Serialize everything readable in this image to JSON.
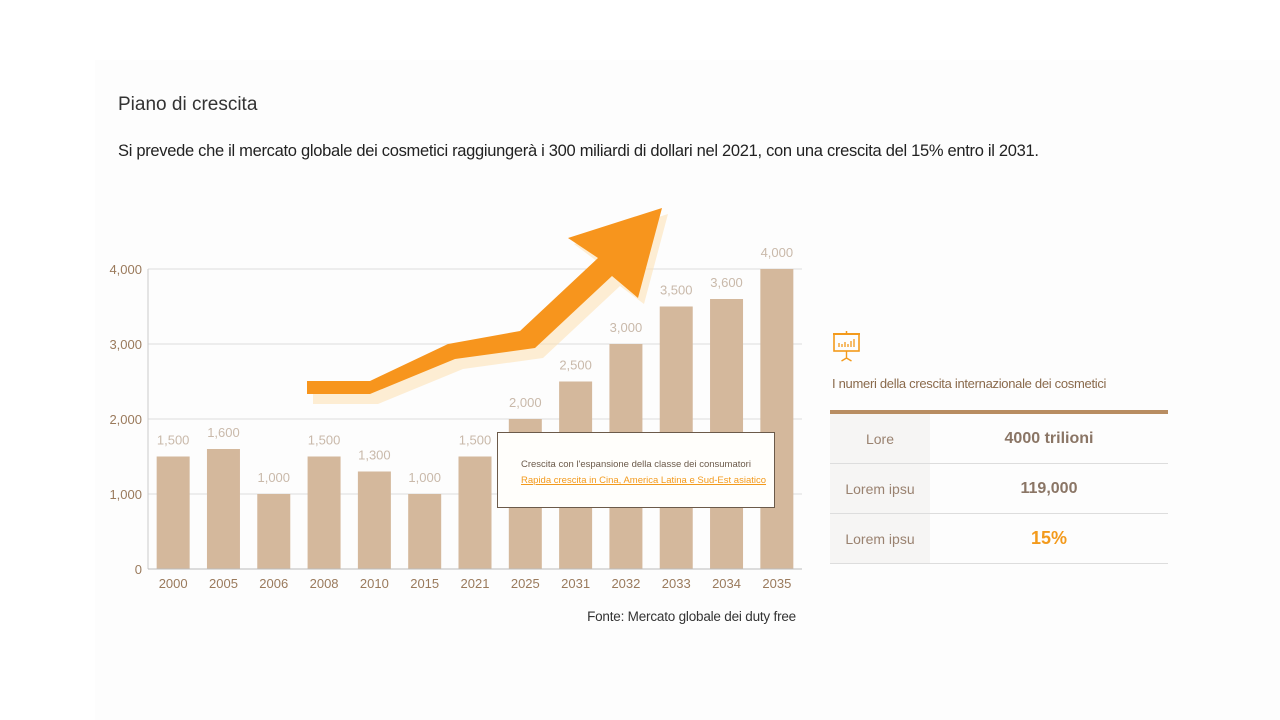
{
  "header": {
    "title": "Piano di crescita",
    "subtitle": "Si prevede che il mercato globale dei cosmetici raggiungerà i 300 miliardi di dollari nel 2021, con una crescita del 15% entro il 2031."
  },
  "chart_data": {
    "type": "bar",
    "categories": [
      "2000",
      "2005",
      "2006",
      "2008",
      "2010",
      "2015",
      "2021",
      "2025",
      "2031",
      "2032",
      "2033",
      "2034",
      "2035"
    ],
    "values": [
      1500,
      1600,
      1000,
      1500,
      1300,
      1000,
      1500,
      2000,
      2500,
      3000,
      3500,
      3600,
      4000
    ],
    "value_labels": [
      "1,500",
      "1,600",
      "1,000",
      "1,500",
      "1,300",
      "1,000",
      "1,500",
      "2,000",
      "2,500",
      "3,000",
      "3,500",
      "3,600",
      "4,000"
    ],
    "y_ticks": [
      0,
      1000,
      2000,
      3000,
      4000
    ],
    "y_tick_labels": [
      "0",
      "1,000",
      "2,000",
      "3,000",
      "4,000"
    ],
    "ylim": [
      0,
      4000
    ],
    "grid": true,
    "bar_color": "#d4b89c",
    "arrow_color": "#f7951d",
    "annotation": {
      "line1": "Crescita con l'espansione della classe dei consumatori",
      "line2": "Rapida crescita in Cina, America Latina e Sud-Est asiatico"
    }
  },
  "source": "Fonte: Mercato globale dei duty free",
  "panel": {
    "icon": "presentation-chart-icon",
    "title": "I numeri della crescita internazionale dei cosmetici",
    "rows": [
      {
        "label": "Lore",
        "value": "4000 trilioni"
      },
      {
        "label": "Lorem ipsu",
        "value": "119,000"
      },
      {
        "label": "Lorem ipsu",
        "value": "15%"
      }
    ]
  }
}
